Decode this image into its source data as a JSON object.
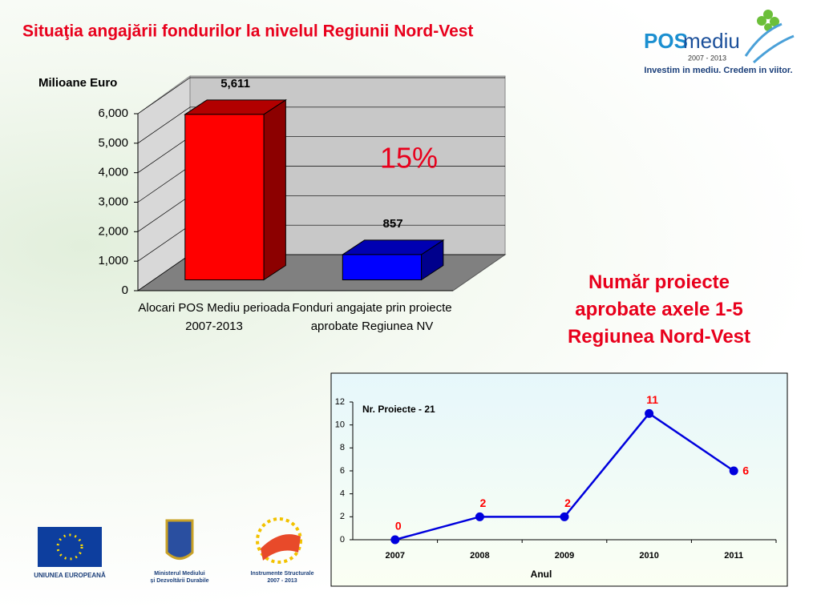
{
  "title": "Situaţia angajării fondurilor la nivelul Regiunii Nord-Vest",
  "logo": {
    "pos": "POS",
    "mediu": "mediu",
    "years": "2007 - 2013",
    "slogan": "Investim in mediu. Credem in viitor."
  },
  "side_text": "Număr proiecte aprobate axele 1-5 Regiunea Nord-Vest",
  "footer": {
    "eu": "UNIUNEA EUROPEANĂ",
    "ministry": [
      "Ministerul Mediului",
      "și Dezvoltării Durabile"
    ],
    "instruments": [
      "Instrumente Structurale",
      "2007 - 2013"
    ]
  },
  "chart_data": [
    {
      "type": "bar",
      "ylabel": "Milioane Euro",
      "categories": [
        "Alocari POS Mediu perioada 2007-2013",
        "Fonduri angajate prin proiecte aprobate Regiunea NV"
      ],
      "values": [
        5611,
        857
      ],
      "value_labels": [
        "5,611",
        "857"
      ],
      "colors": [
        "#ff0000",
        "#0000ff"
      ],
      "ylim": [
        0,
        6000
      ],
      "yticks": [
        0,
        {
          "value": 1000,
          "label": "1,000"
        },
        {
          "value": 2000,
          "label": "2,000"
        },
        {
          "value": 3000,
          "label": "3,000"
        },
        {
          "value": 4000,
          "label": "4,000"
        },
        {
          "value": 5000,
          "label": "5,000"
        },
        {
          "value": 6000,
          "label": "6,000"
        }
      ],
      "grid": true,
      "annotation": "15%"
    },
    {
      "type": "line",
      "xlabel": "Anul",
      "categories": [
        "2007",
        "2008",
        "2009",
        "2010",
        "2011"
      ],
      "series": [
        {
          "name": "Nr. Proiecte - 21",
          "color": "#0000dd",
          "values": [
            0,
            2,
            2,
            11,
            6
          ]
        }
      ],
      "ylim": [
        0,
        12
      ],
      "yticks": [
        0,
        2,
        4,
        6,
        8,
        10,
        12
      ],
      "grid": false,
      "label_color": "#ff0000"
    }
  ]
}
